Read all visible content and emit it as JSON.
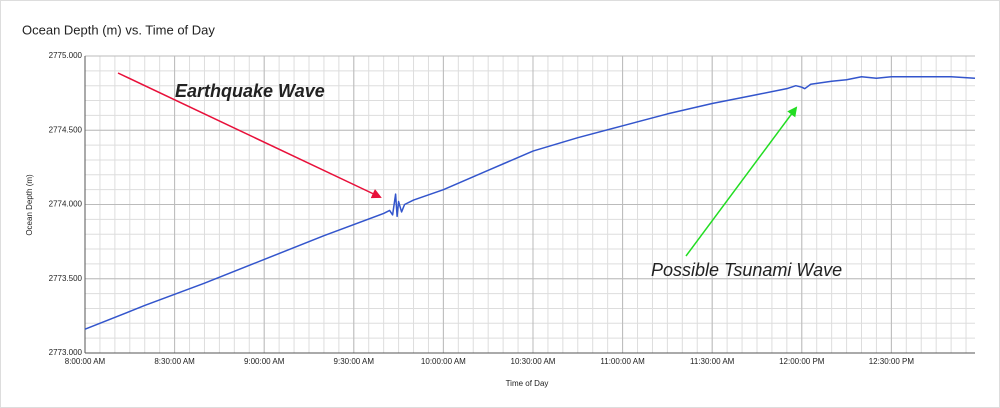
{
  "chart_data": {
    "type": "line",
    "title": "Ocean Depth (m) vs. Time of Day",
    "x_label": "Time of Day",
    "y_label": "Ocean Depth (m)",
    "x": [
      "8:00:00 AM",
      "8:20:00 AM",
      "8:40:00 AM",
      "9:00:00 AM",
      "9:20:00 AM",
      "9:40:00 AM",
      "9:42:00 AM",
      "9:43:00 AM",
      "9:44:00 AM",
      "9:44:30 AM",
      "9:45:00 AM",
      "9:46:00 AM",
      "9:47:00 AM",
      "9:50:00 AM",
      "10:00:00 AM",
      "10:15:00 AM",
      "10:30:00 AM",
      "10:45:00 AM",
      "11:00:00 AM",
      "11:15:00 AM",
      "11:30:00 AM",
      "11:45:00 AM",
      "11:55:00 AM",
      "11:58:00 AM",
      "12:00:00 PM",
      "12:01:00 PM",
      "12:03:00 PM",
      "12:10:00 PM",
      "12:15:00 PM",
      "12:20:00 PM",
      "12:25:00 PM",
      "12:30:00 PM",
      "12:40:00 PM",
      "12:50:00 PM",
      "12:58:00 PM"
    ],
    "series": [
      {
        "name": "Ocean Depth (m)",
        "color": "#3355cc",
        "values": [
          2773.16,
          2773.32,
          2773.47,
          2773.63,
          2773.79,
          2773.94,
          2773.96,
          2773.93,
          2774.07,
          2773.92,
          2774.02,
          2773.95,
          2774.0,
          2774.03,
          2774.1,
          2774.23,
          2774.36,
          2774.45,
          2774.53,
          2774.61,
          2774.68,
          2774.74,
          2774.78,
          2774.8,
          2774.79,
          2774.78,
          2774.81,
          2774.83,
          2774.84,
          2774.86,
          2774.85,
          2774.86,
          2774.86,
          2774.86,
          2774.85
        ]
      }
    ],
    "xlim": [
      "8:00:00 AM",
      "12:58:00 PM"
    ],
    "xticks": [
      "8:00:00 AM",
      "8:30:00 AM",
      "9:00:00 AM",
      "9:30:00 AM",
      "10:00:00 AM",
      "10:30:00 AM",
      "11:00:00 AM",
      "11:30:00 AM",
      "12:00:00 PM",
      "12:30:00 PM"
    ],
    "ylim": [
      2773,
      2775
    ],
    "yticks": [
      {
        "value": 2773,
        "label": "2773.000"
      },
      {
        "value": 2773.5,
        "label": "2773.500"
      },
      {
        "value": 2774,
        "label": "2774.000"
      },
      {
        "value": 2774.5,
        "label": "2774.500"
      },
      {
        "value": 2775,
        "label": "2775.000"
      }
    ],
    "grid": true,
    "minor_grid": true,
    "annotations": [
      {
        "text": "Earthquake Wave",
        "color": "#e8103a"
      },
      {
        "text": "Possible Tsunami Wave",
        "color": "#22dd22"
      }
    ]
  }
}
